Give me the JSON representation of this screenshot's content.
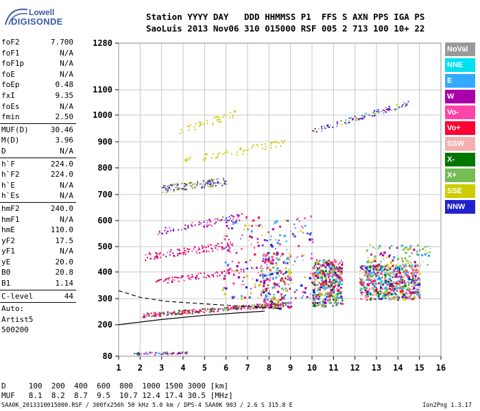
{
  "logo": {
    "line1": "Lowell",
    "line2": "DIGISONDE"
  },
  "header": {
    "line1": "Station YYYY DAY   DDD HHMMSS P1  FFS S AXN PPS IGA PS",
    "line2": "SaoLuis 2013 Nov06 310 015000 RSF 005 2 713 100 10+ 22"
  },
  "params": [
    {
      "k": "foF2",
      "v": "7.700"
    },
    {
      "k": "foF1",
      "v": "N/A"
    },
    {
      "k": "foF1p",
      "v": "N/A"
    },
    {
      "k": "foE",
      "v": "N/A"
    },
    {
      "k": "foEp",
      "v": "0.48"
    },
    {
      "k": "fxI",
      "v": "9.35"
    },
    {
      "k": "foEs",
      "v": "N/A"
    },
    {
      "k": "fmin",
      "v": "2.50",
      "sep": true
    },
    {
      "k": "MUF(D)",
      "v": "30.46"
    },
    {
      "k": "M(D)",
      "v": "3.96"
    },
    {
      "k": "D",
      "v": "N/A",
      "sep": true
    },
    {
      "k": "h`F",
      "v": "224.0"
    },
    {
      "k": "h`F2",
      "v": "224.0"
    },
    {
      "k": "h`E",
      "v": "N/A"
    },
    {
      "k": "h`Es",
      "v": "N/A",
      "sep": true
    },
    {
      "k": "hmF2",
      "v": "240.0"
    },
    {
      "k": "hmF1",
      "v": "N/A"
    },
    {
      "k": "hmE",
      "v": "110.0"
    },
    {
      "k": "yF2",
      "v": "17.5"
    },
    {
      "k": "yF1",
      "v": "N/A"
    },
    {
      "k": "yE",
      "v": "20.0"
    },
    {
      "k": "B0",
      "v": "20.8"
    },
    {
      "k": "B1",
      "v": "1.14",
      "sep": true
    },
    {
      "k": "C-level",
      "v": "44",
      "sep": true
    },
    {
      "k": "Auto:",
      "v": ""
    },
    {
      "k": "Artist5",
      "v": ""
    },
    {
      "k": "500200",
      "v": ""
    }
  ],
  "legend": [
    {
      "label": "NoVal",
      "color": "#999999"
    },
    {
      "label": "NNE",
      "color": "#00e0f0"
    },
    {
      "label": "E",
      "color": "#33aaff"
    },
    {
      "label": "W",
      "color": "#aa00aa"
    },
    {
      "label": "Vo-",
      "color": "#ff44aa"
    },
    {
      "label": "Vo+",
      "color": "#ff0033"
    },
    {
      "label": "SSW",
      "color": "#f4b0b0"
    },
    {
      "label": "X-",
      "color": "#007700"
    },
    {
      "label": "X+",
      "color": "#77bb55"
    },
    {
      "label": "SSE",
      "color": "#cccc00"
    },
    {
      "label": "NNW",
      "color": "#2222cc"
    }
  ],
  "dtable": {
    "line1": "D     100  200  400  600  800  1000 1500 3000 [km]",
    "line2": "MUF   8.1  8.2  8.7  9.5  10.7 12.4 17.4 30.5 [MHz]"
  },
  "footer": "SAA0K_2013310015000.RSF / 300fx256h 50 kHz 5.0 km / DPS-4 SAA0K 903 / 2.6 S 315.8 E",
  "version": "Ion2Png 1.3.17",
  "chart_data": {
    "type": "scatter",
    "xlim": [
      1,
      16
    ],
    "ylim": [
      80,
      1280
    ],
    "xticks": [
      1,
      2,
      3,
      4,
      5,
      6,
      7,
      8,
      9,
      10,
      11,
      12,
      13,
      14,
      15,
      16
    ],
    "yticks": [
      80,
      200,
      300,
      400,
      500,
      600,
      700,
      800,
      900,
      1000,
      1100,
      1280
    ],
    "grid": true,
    "clusters": [
      {
        "name": "o-trace",
        "x0": 2.1,
        "x1": 8.8,
        "y0": 238,
        "y1": 282,
        "w": 8,
        "n": 320,
        "colors": [
          "#ff0033",
          "#ff44aa",
          "#aa00aa",
          "#007700",
          "#77bb55"
        ]
      },
      {
        "name": "band-E",
        "x0": 1.7,
        "x1": 4.3,
        "y0": 92,
        "y1": 94,
        "w": 5,
        "n": 70,
        "colors": [
          "#aa00aa",
          "#007700",
          "#ff44aa",
          "#33aaff"
        ]
      },
      {
        "name": "echo-2",
        "x0": 2.7,
        "x1": 6.8,
        "y0": 365,
        "y1": 410,
        "w": 10,
        "n": 90,
        "colors": [
          "#ff0033",
          "#ff44aa",
          "#aa00aa"
        ]
      },
      {
        "name": "echo-3",
        "x0": 2.2,
        "x1": 6.3,
        "y0": 462,
        "y1": 510,
        "w": 14,
        "n": 110,
        "colors": [
          "#ff0033",
          "#ff44aa",
          "#aa00aa"
        ]
      },
      {
        "name": "echo-4",
        "x0": 2.8,
        "x1": 7.0,
        "y0": 560,
        "y1": 620,
        "w": 14,
        "n": 80,
        "colors": [
          "#aa00aa",
          "#ff44aa",
          "#2222cc"
        ]
      },
      {
        "name": "echo-5",
        "x0": 3.0,
        "x1": 6.0,
        "y0": 722,
        "y1": 752,
        "w": 14,
        "n": 140,
        "colors": [
          "#cccc00",
          "#999999",
          "#2222cc"
        ]
      },
      {
        "name": "echo-6",
        "x0": 3.6,
        "x1": 8.8,
        "y0": 820,
        "y1": 900,
        "w": 14,
        "n": 60,
        "colors": [
          "#cccc00"
        ]
      },
      {
        "name": "echo-7",
        "x0": 3.8,
        "x1": 6.5,
        "y0": 940,
        "y1": 1010,
        "w": 14,
        "n": 40,
        "colors": [
          "#cccc00"
        ]
      },
      {
        "name": "hi-trace",
        "x0": 10.0,
        "x1": 14.5,
        "y0": 940,
        "y1": 1050,
        "w": 10,
        "n": 110,
        "colors": [
          "#2222cc",
          "#cccc00",
          "#33aaff",
          "#aa00aa"
        ]
      },
      {
        "name": "spread-1",
        "x0": 7.6,
        "x1": 9.0,
        "y0": 260,
        "y1": 480,
        "w": 0,
        "n": 200,
        "colors": [
          "#ff0033",
          "#33aaff",
          "#ff44aa",
          "#cccc00",
          "#77bb55",
          "#aa00aa",
          "#2222cc"
        ]
      },
      {
        "name": "spread-2",
        "x0": 10.0,
        "x1": 11.4,
        "y0": 275,
        "y1": 450,
        "w": 0,
        "n": 420,
        "colors": [
          "#ff0033",
          "#33aaff",
          "#ff44aa",
          "#cccc00",
          "#77bb55",
          "#aa00aa",
          "#00e0f0",
          "#2222cc",
          "#007700"
        ]
      },
      {
        "name": "spread-3",
        "x0": 12.2,
        "x1": 15.0,
        "y0": 300,
        "y1": 430,
        "w": 0,
        "n": 650,
        "colors": [
          "#ff0033",
          "#33aaff",
          "#ff44aa",
          "#cccc00",
          "#77bb55",
          "#aa00aa",
          "#00e0f0",
          "#2222cc",
          "#007700",
          "#f4b0b0"
        ]
      },
      {
        "name": "spread-4",
        "x0": 5.8,
        "x1": 10.0,
        "y0": 300,
        "y1": 620,
        "w": 0,
        "n": 200,
        "colors": [
          "#aa00aa",
          "#33aaff",
          "#ff44aa",
          "#cccc00",
          "#ff0033",
          "#2222cc"
        ]
      },
      {
        "name": "spread-5",
        "x0": 12.5,
        "x1": 15.5,
        "y0": 430,
        "y1": 510,
        "w": 0,
        "n": 90,
        "colors": [
          "#33aaff",
          "#cccc00",
          "#77bb55",
          "#aa00aa"
        ]
      }
    ],
    "profile_line": [
      [
        1,
        200
      ],
      [
        3,
        220
      ],
      [
        5,
        236
      ],
      [
        6.5,
        245
      ],
      [
        7.8,
        252
      ]
    ],
    "dashed_line": [
      [
        1,
        330
      ],
      [
        2,
        305
      ],
      [
        3.2,
        290
      ],
      [
        5,
        280
      ],
      [
        6.5,
        272
      ],
      [
        8.5,
        262
      ]
    ]
  }
}
